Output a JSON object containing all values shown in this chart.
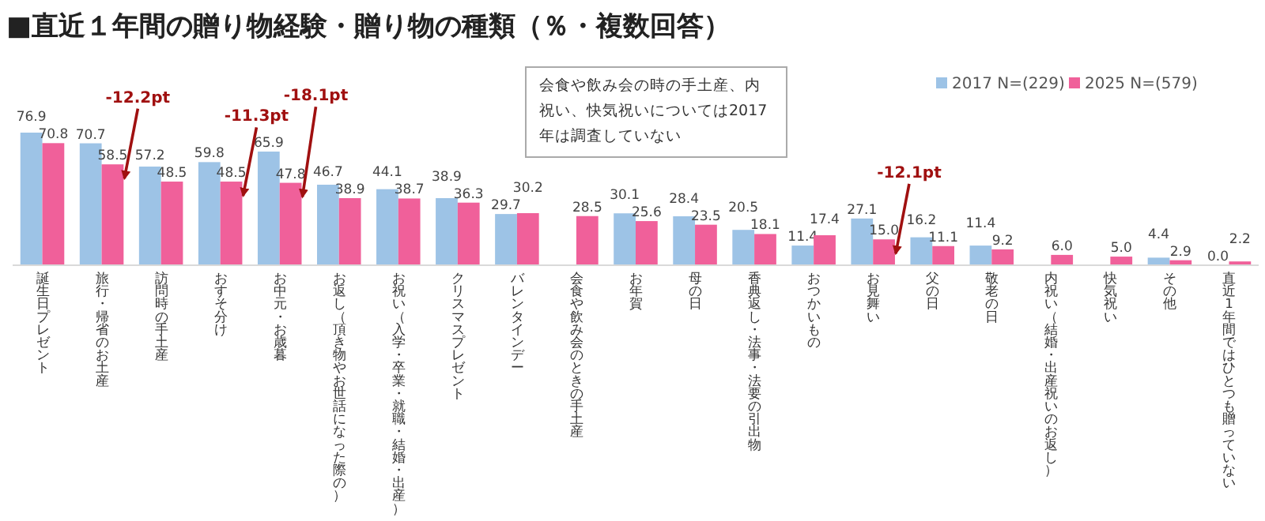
{
  "chart_data": {
    "type": "bar",
    "title": "■直近１年間の贈り物経験・贈り物の種類（％・複数回答）",
    "categories": [
      "誕生日プレゼント",
      "旅行・帰省のお土産",
      "訪問時の手土産",
      "おすそ分け",
      "お中元・お歳暮",
      "お返し（頂き物やお世話になった際の）",
      "お祝い（入学・卒業・就職・結婚・出産）",
      "クリスマスプレゼント",
      "バレンタインデー",
      "会食や飲み会のときの手土産",
      "お年賀",
      "母の日",
      "香典返し・法事・法要の引出物",
      "おつかいもの",
      "お見舞い",
      "父の日",
      "敬老の日",
      "内祝い（結婚・出産祝いのお返し）",
      "快気祝い",
      "その他",
      "直近1年間ではひとつも贈っていない"
    ],
    "series": [
      {
        "name": "2017 N=(229)",
        "color": "#9dc3e6",
        "values": [
          76.9,
          70.7,
          57.2,
          59.8,
          65.9,
          46.7,
          44.1,
          38.9,
          29.7,
          null,
          30.1,
          28.4,
          20.5,
          11.4,
          27.1,
          16.2,
          11.4,
          null,
          null,
          4.4,
          0.0
        ],
        "value_labels": [
          "76.9",
          "70.7",
          "57.2",
          "59.8",
          "65.9",
          "46.7",
          "44.1",
          "38.9",
          "29.7",
          null,
          "30.1",
          "28.4",
          "20.5",
          "11.4",
          "27.1",
          "16.2",
          "11.4",
          null,
          null,
          "4.4",
          "0.0"
        ]
      },
      {
        "name": "2025 N=(579)",
        "color": "#f0609a",
        "values": [
          70.8,
          58.5,
          48.5,
          48.5,
          47.8,
          38.9,
          38.7,
          36.3,
          30.2,
          28.5,
          25.6,
          23.5,
          18.1,
          17.4,
          15.0,
          11.1,
          9.2,
          6.0,
          5.0,
          2.9,
          2.2
        ],
        "value_labels": [
          "70.8",
          "58.5",
          "48.5",
          "48.5",
          "47.8",
          "38.9",
          "38.7",
          "36.3",
          "30.2",
          "28.5",
          "25.6",
          "23.5",
          "18.1",
          "17.4",
          "15.0",
          "11.1",
          "9.2",
          "6.0",
          "5.0",
          "2.9",
          "2.2"
        ]
      }
    ],
    "legend": "top right",
    "annotations": [
      "-12.2pt",
      "-11.3pt",
      "-18.1pt",
      "-12.1pt",
      "会食や飲み会の時の手土産、内祝い、快気祝いについては2017年は調査していない"
    ]
  }
}
